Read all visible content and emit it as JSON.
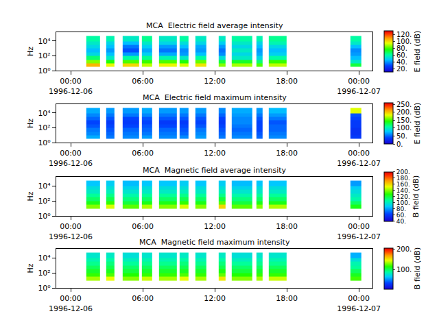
{
  "chart_data": [
    {
      "type": "heatmap",
      "title": "MCA  Electric field average intensity",
      "ylabel": "Hz",
      "log": "y",
      "grid": false,
      "xlim": [
        "1996-12-05 22:48",
        "1996-12-07 01:08"
      ],
      "xticks": [
        {
          "value": "1996-12-06 00:00",
          "label": "00:00\n1996-12-06"
        },
        {
          "value": "1996-12-06 06:00",
          "label": "06:00"
        },
        {
          "value": "1996-12-06 12:00",
          "label": "12:00"
        },
        {
          "value": "1996-12-06 18:00",
          "label": "18:00"
        },
        {
          "value": "1996-12-07 00:00",
          "label": "00:00\n1996-12-07"
        }
      ],
      "ylim": [
        1,
        160000
      ],
      "yticks": [
        {
          "value": 1,
          "label": "10⁰"
        },
        {
          "value": 100,
          "label": "10²"
        },
        {
          "value": 10000,
          "label": "10⁴"
        }
      ],
      "x": [
        [
          "1996-12-06 01:18",
          "1996-12-06 02:27"
        ],
        [
          "1996-12-06 02:58",
          "1996-12-06 03:40"
        ],
        [
          "1996-12-06 04:20",
          "1996-12-06 05:42"
        ],
        [
          "1996-12-06 05:56",
          "1996-12-06 06:48"
        ],
        [
          "1996-12-06 07:22",
          "1996-12-06 08:52"
        ],
        [
          "1996-12-06 09:05",
          "1996-12-06 09:50"
        ],
        [
          "1996-12-06 10:24",
          "1996-12-06 11:18"
        ],
        [
          "1996-12-06 12:20",
          "1996-12-06 12:55"
        ],
        [
          "1996-12-06 13:26",
          "1996-12-06 15:08"
        ],
        [
          "1996-12-06 15:29",
          "1996-12-06 16:00"
        ],
        [
          "1996-12-06 16:31",
          "1996-12-06 18:00"
        ],
        [
          "1996-12-06 23:16",
          "1996-12-07 00:14"
        ]
      ],
      "y": [
        3,
        10,
        30,
        100,
        300,
        1000,
        3000,
        10000,
        50000
      ],
      "z": [
        [
          105,
          95,
          100,
          90,
          95,
          92,
          98,
          85,
          88,
          80,
          90,
          70
        ],
        [
          85,
          75,
          80,
          78,
          80,
          75,
          82,
          70,
          72,
          65,
          78,
          55
        ],
        [
          65,
          55,
          60,
          62,
          58,
          55,
          60,
          52,
          55,
          50,
          60,
          45
        ],
        [
          50,
          45,
          40,
          48,
          42,
          40,
          45,
          38,
          50,
          42,
          48,
          40
        ],
        [
          45,
          40,
          30,
          42,
          35,
          38,
          40,
          35,
          55,
          40,
          45,
          38
        ],
        [
          50,
          45,
          35,
          48,
          40,
          45,
          42,
          40,
          50,
          45,
          50,
          45
        ],
        [
          55,
          50,
          45,
          55,
          50,
          52,
          50,
          48,
          55,
          50,
          58,
          55
        ],
        [
          60,
          58,
          55,
          62,
          55,
          60,
          55,
          55,
          60,
          58,
          62,
          60
        ]
      ],
      "colorbar": {
        "title": "E field (dB)",
        "range": [
          10,
          130
        ],
        "ticks": [
          {
            "value": 20,
            "label": "20."
          },
          {
            "value": 40,
            "label": "40."
          },
          {
            "value": 60,
            "label": "60."
          },
          {
            "value": 80,
            "label": "80."
          },
          {
            "value": 100,
            "label": "100."
          },
          {
            "value": 120,
            "label": "120."
          }
        ]
      }
    },
    {
      "type": "heatmap",
      "title": "MCA  Electric field maximum intensity",
      "ylabel": "Hz",
      "log": "y",
      "grid": false,
      "xlim": [
        "1996-12-05 22:48",
        "1996-12-07 01:08"
      ],
      "xticks": [
        {
          "value": "1996-12-06 00:00",
          "label": "00:00\n1996-12-06"
        },
        {
          "value": "1996-12-06 06:00",
          "label": "06:00"
        },
        {
          "value": "1996-12-06 12:00",
          "label": "12:00"
        },
        {
          "value": "1996-12-06 18:00",
          "label": "18:00"
        },
        {
          "value": "1996-12-07 00:00",
          "label": "00:00\n1996-12-07"
        }
      ],
      "ylim": [
        1,
        160000
      ],
      "yticks": [
        {
          "value": 1,
          "label": "10⁰"
        },
        {
          "value": 100,
          "label": "10²"
        },
        {
          "value": 10000,
          "label": "10⁴"
        }
      ],
      "x": [
        [
          "1996-12-06 01:18",
          "1996-12-06 02:27"
        ],
        [
          "1996-12-06 02:58",
          "1996-12-06 03:40"
        ],
        [
          "1996-12-06 04:20",
          "1996-12-06 05:42"
        ],
        [
          "1996-12-06 05:56",
          "1996-12-06 06:48"
        ],
        [
          "1996-12-06 07:22",
          "1996-12-06 08:52"
        ],
        [
          "1996-12-06 09:05",
          "1996-12-06 09:50"
        ],
        [
          "1996-12-06 10:24",
          "1996-12-06 11:18"
        ],
        [
          "1996-12-06 12:20",
          "1996-12-06 12:55"
        ],
        [
          "1996-12-06 13:26",
          "1996-12-06 15:08"
        ],
        [
          "1996-12-06 15:29",
          "1996-12-06 16:00"
        ],
        [
          "1996-12-06 16:31",
          "1996-12-06 18:00"
        ],
        [
          "1996-12-06 23:16",
          "1996-12-07 00:14"
        ]
      ],
      "y": [
        3,
        10,
        30,
        100,
        300,
        1000,
        3000,
        10000,
        50000
      ],
      "z": [
        [
          70,
          55,
          60,
          65,
          60,
          60,
          65,
          55,
          60,
          50,
          60,
          35
        ],
        [
          60,
          50,
          55,
          55,
          55,
          50,
          60,
          50,
          55,
          45,
          55,
          30
        ],
        [
          55,
          45,
          50,
          50,
          50,
          45,
          55,
          45,
          50,
          40,
          50,
          30
        ],
        [
          45,
          40,
          40,
          45,
          40,
          40,
          45,
          40,
          55,
          40,
          50,
          35
        ],
        [
          40,
          35,
          35,
          40,
          35,
          35,
          40,
          35,
          60,
          40,
          45,
          35
        ],
        [
          50,
          45,
          40,
          45,
          45,
          45,
          45,
          40,
          60,
          45,
          55,
          40
        ],
        [
          60,
          55,
          55,
          60,
          55,
          55,
          55,
          50,
          65,
          55,
          65,
          45
        ],
        [
          70,
          65,
          65,
          70,
          65,
          65,
          65,
          60,
          70,
          65,
          75,
          180
        ]
      ],
      "colorbar": {
        "title": "E field (dB)",
        "range": [
          0,
          260
        ],
        "ticks": [
          {
            "value": 0,
            "label": "0."
          },
          {
            "value": 50,
            "label": "50."
          },
          {
            "value": 100,
            "label": "100."
          },
          {
            "value": 150,
            "label": "150."
          },
          {
            "value": 200,
            "label": "200."
          },
          {
            "value": 250,
            "label": "250."
          }
        ]
      }
    },
    {
      "type": "heatmap",
      "title": "MCA  Magnetic field average intensity",
      "ylabel": "Hz",
      "log": "y",
      "grid": false,
      "xlim": [
        "1996-12-05 22:48",
        "1996-12-07 01:08"
      ],
      "xticks": [
        {
          "value": "1996-12-06 00:00",
          "label": "00:00\n1996-12-06"
        },
        {
          "value": "1996-12-06 06:00",
          "label": "06:00"
        },
        {
          "value": "1996-12-06 12:00",
          "label": "12:00"
        },
        {
          "value": "1996-12-06 18:00",
          "label": "18:00"
        },
        {
          "value": "1996-12-07 00:00",
          "label": "00:00\n1996-12-07"
        }
      ],
      "ylim": [
        1,
        160000
      ],
      "yticks": [
        {
          "value": 1,
          "label": "10⁰"
        },
        {
          "value": 100,
          "label": "10²"
        },
        {
          "value": 10000,
          "label": "10⁴"
        }
      ],
      "x": [
        [
          "1996-12-06 01:18",
          "1996-12-06 02:27"
        ],
        [
          "1996-12-06 02:58",
          "1996-12-06 03:40"
        ],
        [
          "1996-12-06 04:20",
          "1996-12-06 05:42"
        ],
        [
          "1996-12-06 05:56",
          "1996-12-06 06:48"
        ],
        [
          "1996-12-06 07:22",
          "1996-12-06 08:52"
        ],
        [
          "1996-12-06 09:05",
          "1996-12-06 09:50"
        ],
        [
          "1996-12-06 10:24",
          "1996-12-06 11:18"
        ],
        [
          "1996-12-06 12:20",
          "1996-12-06 12:55"
        ],
        [
          "1996-12-06 13:26",
          "1996-12-06 15:08"
        ],
        [
          "1996-12-06 15:29",
          "1996-12-06 16:00"
        ],
        [
          "1996-12-06 16:31",
          "1996-12-06 18:00"
        ],
        [
          "1996-12-06 23:16",
          "1996-12-07 00:14"
        ]
      ],
      "y": [
        3,
        10,
        30,
        100,
        300,
        1000,
        3000,
        10000,
        50000
      ],
      "z": [
        [
          null,
          null,
          null,
          null,
          null,
          null,
          null,
          null,
          null,
          null,
          null,
          null
        ],
        [
          140,
          150,
          135,
          145,
          140,
          150,
          140,
          160,
          135,
          140,
          145,
          125
        ],
        [
          125,
          130,
          120,
          125,
          125,
          130,
          125,
          135,
          120,
          125,
          125,
          115
        ],
        [
          115,
          118,
          112,
          115,
          115,
          118,
          115,
          120,
          112,
          115,
          115,
          105
        ],
        [
          108,
          110,
          105,
          108,
          108,
          110,
          108,
          110,
          105,
          108,
          108,
          100
        ],
        [
          100,
          102,
          98,
          100,
          100,
          102,
          100,
          102,
          98,
          100,
          100,
          95
        ],
        [
          95,
          96,
          92,
          95,
          95,
          96,
          95,
          96,
          92,
          95,
          95,
          90
        ],
        [
          88,
          90,
          86,
          88,
          88,
          90,
          88,
          90,
          86,
          88,
          88,
          80
        ]
      ],
      "colorbar": {
        "title": "B field (dB)",
        "range": [
          40,
          200
        ],
        "ticks": [
          {
            "value": 40,
            "label": "40."
          },
          {
            "value": 60,
            "label": "60."
          },
          {
            "value": 80,
            "label": "80."
          },
          {
            "value": 100,
            "label": "100."
          },
          {
            "value": 120,
            "label": "120."
          },
          {
            "value": 140,
            "label": "140."
          },
          {
            "value": 160,
            "label": "160."
          },
          {
            "value": 180,
            "label": "180."
          },
          {
            "value": 200,
            "label": "200."
          }
        ]
      }
    },
    {
      "type": "heatmap",
      "title": "MCA  Magnetic field maximum intensity",
      "ylabel": "Hz",
      "log": "y",
      "grid": false,
      "xlim": [
        "1996-12-05 22:48",
        "1996-12-07 01:08"
      ],
      "xticks": [
        {
          "value": "1996-12-06 00:00",
          "label": "00:00\n1996-12-06"
        },
        {
          "value": "1996-12-06 06:00",
          "label": "06:00"
        },
        {
          "value": "1996-12-06 12:00",
          "label": "12:00"
        },
        {
          "value": "1996-12-06 18:00",
          "label": "18:00"
        },
        {
          "value": "1996-12-07 00:00",
          "label": "00:00\n1996-12-07"
        }
      ],
      "ylim": [
        1,
        160000
      ],
      "yticks": [
        {
          "value": 1,
          "label": "10⁰"
        },
        {
          "value": 100,
          "label": "10²"
        },
        {
          "value": 10000,
          "label": "10⁴"
        }
      ],
      "x": [
        [
          "1996-12-06 01:18",
          "1996-12-06 02:27"
        ],
        [
          "1996-12-06 02:58",
          "1996-12-06 03:40"
        ],
        [
          "1996-12-06 04:20",
          "1996-12-06 05:42"
        ],
        [
          "1996-12-06 05:56",
          "1996-12-06 06:48"
        ],
        [
          "1996-12-06 07:22",
          "1996-12-06 08:52"
        ],
        [
          "1996-12-06 09:05",
          "1996-12-06 09:50"
        ],
        [
          "1996-12-06 10:24",
          "1996-12-06 11:18"
        ],
        [
          "1996-12-06 12:20",
          "1996-12-06 12:55"
        ],
        [
          "1996-12-06 13:26",
          "1996-12-06 15:08"
        ],
        [
          "1996-12-06 15:29",
          "1996-12-06 16:00"
        ],
        [
          "1996-12-06 16:31",
          "1996-12-06 18:00"
        ],
        [
          "1996-12-06 23:16",
          "1996-12-07 00:14"
        ]
      ],
      "y": [
        3,
        10,
        30,
        100,
        300,
        1000,
        3000,
        10000,
        50000
      ],
      "z": [
        [
          null,
          null,
          null,
          null,
          null,
          null,
          null,
          null,
          null,
          null,
          null,
          null
        ],
        [
          135,
          145,
          130,
          140,
          135,
          145,
          135,
          150,
          130,
          135,
          140,
          120
        ],
        [
          118,
          122,
          115,
          118,
          118,
          122,
          118,
          125,
          115,
          118,
          118,
          110
        ],
        [
          108,
          110,
          105,
          108,
          108,
          110,
          108,
          112,
          105,
          108,
          108,
          100
        ],
        [
          100,
          102,
          98,
          100,
          100,
          102,
          100,
          102,
          98,
          100,
          100,
          90
        ],
        [
          92,
          95,
          90,
          92,
          92,
          95,
          92,
          95,
          90,
          92,
          92,
          85
        ],
        [
          85,
          88,
          82,
          85,
          85,
          88,
          85,
          88,
          82,
          85,
          85,
          75
        ],
        [
          78,
          80,
          75,
          78,
          78,
          80,
          78,
          80,
          75,
          78,
          78,
          60
        ]
      ],
      "colorbar": {
        "title": "B field (dB)",
        "range": [
          5,
          205
        ],
        "ticks": [
          {
            "value": 100,
            "label": "100."
          },
          {
            "value": 200,
            "label": "200."
          }
        ]
      }
    }
  ]
}
